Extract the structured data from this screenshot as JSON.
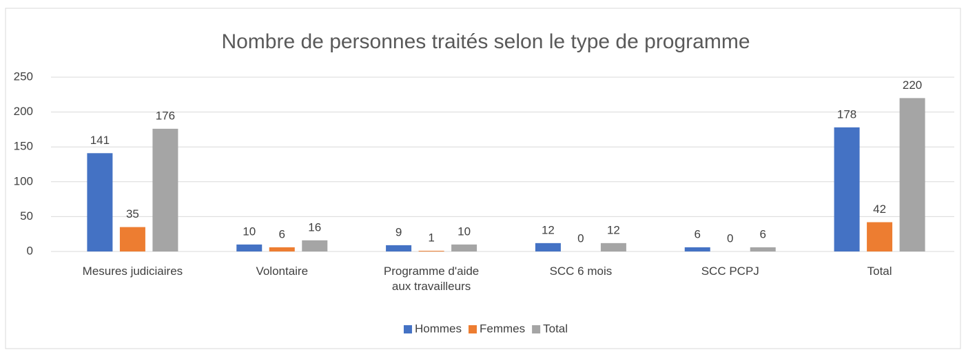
{
  "chart_data": {
    "type": "bar",
    "title": "Nombre de personnes traités selon le type de programme",
    "categories": [
      "Mesures judiciaires",
      "Volontaire",
      "Programme d'aide aux travailleurs",
      "SCC 6 mois",
      "SCC PCPJ",
      "Total"
    ],
    "series": [
      {
        "name": "Hommes",
        "color": "#4472c4",
        "values": [
          141,
          10,
          9,
          12,
          6,
          178
        ]
      },
      {
        "name": "Femmes",
        "color": "#ed7d31",
        "values": [
          35,
          6,
          1,
          0,
          0,
          42
        ]
      },
      {
        "name": "Total",
        "color": "#a5a5a5",
        "values": [
          176,
          16,
          10,
          12,
          6,
          220
        ]
      }
    ],
    "ylim": [
      0,
      250
    ],
    "yticks": [
      0,
      50,
      100,
      150,
      200,
      250
    ],
    "grid": true,
    "legend": "bottom"
  }
}
